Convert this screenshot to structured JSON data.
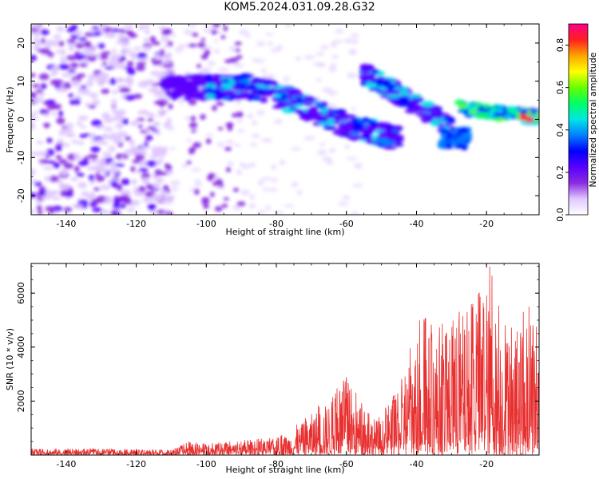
{
  "title": "KOM5.2024.031.09.28.G32",
  "chart_data": [
    {
      "type": "heatmap",
      "xlabel": "Height of straight line (km)",
      "ylabel": "Frequency (Hz)",
      "xlim": [
        -150,
        -5
      ],
      "ylim": [
        -25,
        25
      ],
      "xticks": [
        -140,
        -120,
        -100,
        -80,
        -60,
        -40,
        -20
      ],
      "yticks": [
        -20,
        -10,
        0,
        10,
        20
      ],
      "colorbar": {
        "label": "Normalized spectral amplitude",
        "range": [
          0,
          0.9
        ],
        "ticks": [
          0.0,
          0.2,
          0.4,
          0.6,
          0.8
        ],
        "colormap": [
          "#ffffff",
          "#e0c8ff",
          "#8a2be2",
          "#5a00ff",
          "#0000ff",
          "#0080ff",
          "#00e5e5",
          "#00ff66",
          "#66ff00",
          "#ffff00",
          "#ffa500",
          "#ff2020",
          "#ff0088"
        ]
      },
      "features": [
        {
          "x": -150,
          "x_end": -115,
          "y_range": [
            -25,
            25
          ],
          "amplitude": 0.05
        },
        {
          "x": -112,
          "x_end": -85,
          "y_range": [
            5,
            12
          ],
          "amplitude": 0.15
        },
        {
          "x": -85,
          "x_end": -60,
          "y_range": [
            -4,
            8
          ],
          "amplitude": 0.2
        },
        {
          "x": -60,
          "x_end": -45,
          "y_range": [
            -8,
            2
          ],
          "amplitude": 0.12
        },
        {
          "x": -55,
          "x_end": -30,
          "y_range": [
            -6,
            13
          ],
          "amplitude": 0.18
        },
        {
          "x": -28,
          "x_end": -5,
          "y_range": [
            -2,
            4
          ],
          "amplitude": 0.4
        }
      ]
    },
    {
      "type": "line",
      "xlabel": "Height of straight line (km)",
      "ylabel": "SNR (10 * v/v)",
      "xlim": [
        -150,
        -5
      ],
      "ylim": [
        0,
        7100
      ],
      "xticks": [
        -140,
        -120,
        -100,
        -80,
        -60,
        -40,
        -20
      ],
      "yticks": [
        2000,
        4000,
        6000
      ],
      "series": [
        {
          "color": "#e83030",
          "envelope": {
            "x": [
              -150,
              -130,
              -110,
              -105,
              -100,
              -90,
              -80,
              -75,
              -70,
              -65,
              -60,
              -55,
              -50,
              -45,
              -40,
              -37,
              -35,
              -30,
              -25,
              -20,
              -19,
              -17,
              -15,
              -12,
              -10,
              -7,
              -5
            ],
            "y_max": [
              250,
              250,
              200,
              500,
              450,
              550,
              650,
              1000,
              1800,
              2300,
              2950,
              1800,
              1500,
              2600,
              4800,
              5600,
              5000,
              5300,
              5700,
              6300,
              7100,
              6000,
              5500,
              4500,
              5300,
              5700,
              4600
            ]
          }
        }
      ]
    }
  ]
}
